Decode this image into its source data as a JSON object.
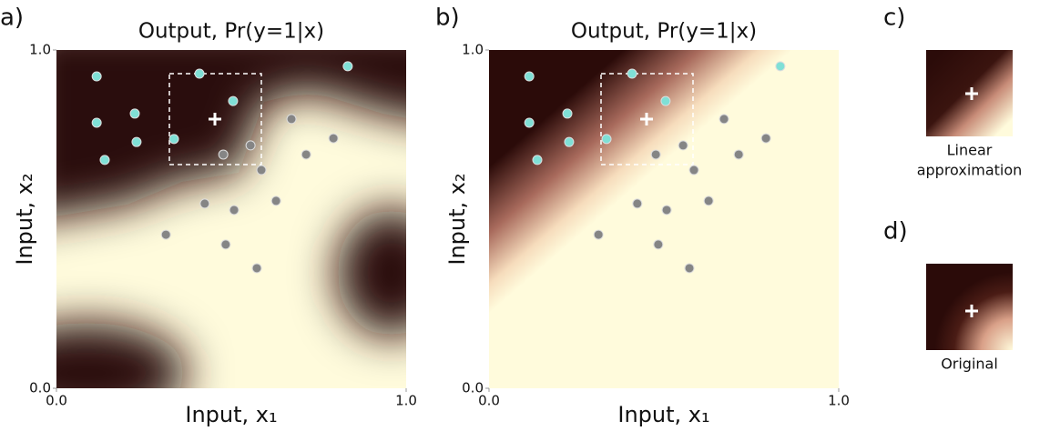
{
  "chart_data": [
    {
      "type": "scatter",
      "label": "a)",
      "title": "Output, Pr(y=1|x)",
      "xlabel": "Input, x₁",
      "ylabel": "Input, x₂",
      "xlim": [
        0,
        1
      ],
      "ylim": [
        0,
        1
      ],
      "xticks": [
        {
          "value": 0,
          "label": "0.0"
        },
        {
          "value": 1,
          "label": "1.0"
        }
      ],
      "yticks": [
        {
          "value": 0,
          "label": "0.0"
        },
        {
          "value": 1,
          "label": "1.0"
        }
      ],
      "series": [
        {
          "color": "#7fe0d6",
          "x": [
            0.115,
            0.409,
            0.505,
            0.224,
            0.115,
            0.336,
            0.229,
            0.138,
            0.833
          ],
          "values": [
            0.922,
            0.93,
            0.849,
            0.812,
            0.785,
            0.737,
            0.728,
            0.675,
            0.952
          ]
        },
        {
          "color": "#858585",
          "x": [
            0.672,
            0.555,
            0.477,
            0.586,
            0.714,
            0.792,
            0.424,
            0.508,
            0.628,
            0.313,
            0.484,
            0.573
          ],
          "values": [
            0.796,
            0.718,
            0.691,
            0.645,
            0.691,
            0.739,
            0.546,
            0.527,
            0.554,
            0.454,
            0.425,
            0.355
          ]
        }
      ]
    },
    {
      "type": "scatter",
      "label": "b)",
      "title": "Output, Pr(y=1|x)",
      "xlabel": "Input, x₁",
      "ylabel": "Input, x₂",
      "xlim": [
        0,
        1
      ],
      "ylim": [
        0,
        1
      ],
      "xticks": [
        {
          "value": 0,
          "label": "0.0"
        },
        {
          "value": 1,
          "label": "1.0"
        }
      ],
      "yticks": [
        {
          "value": 0,
          "label": "0.0"
        },
        {
          "value": 1,
          "label": "1.0"
        }
      ],
      "series": [
        {
          "color": "#7fe0d6",
          "x": [
            0.115,
            0.409,
            0.505,
            0.224,
            0.115,
            0.336,
            0.229,
            0.138,
            0.833
          ],
          "values": [
            0.922,
            0.93,
            0.849,
            0.812,
            0.785,
            0.737,
            0.728,
            0.675,
            0.952
          ]
        },
        {
          "color": "#858585",
          "x": [
            0.672,
            0.555,
            0.477,
            0.586,
            0.714,
            0.792,
            0.424,
            0.508,
            0.628,
            0.313,
            0.484,
            0.573
          ],
          "values": [
            0.796,
            0.718,
            0.691,
            0.645,
            0.691,
            0.739,
            0.546,
            0.527,
            0.554,
            0.454,
            0.425,
            0.355
          ]
        }
      ]
    },
    {
      "type": "image",
      "label": "c)",
      "caption": [
        "Linear",
        "approximation"
      ]
    },
    {
      "type": "image",
      "label": "d)",
      "caption": [
        "Original"
      ]
    }
  ]
}
